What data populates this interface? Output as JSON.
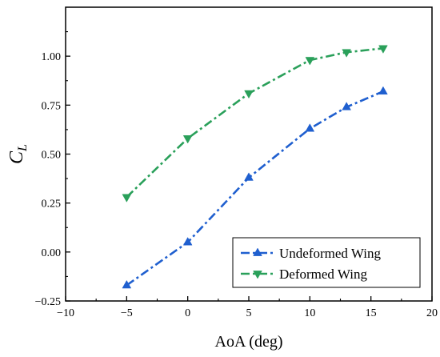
{
  "chart_data": {
    "type": "line",
    "xlabel": "AoA (deg)",
    "ylabel_main": "C",
    "ylabel_sub": "L",
    "xlim": [
      -10,
      20
    ],
    "ylim": [
      -0.25,
      1.25
    ],
    "xticks": [
      -10,
      -5,
      0,
      5,
      10,
      15,
      20
    ],
    "yticks": [
      -0.25,
      0.0,
      0.25,
      0.5,
      0.75,
      1.0
    ],
    "xtick_labels": [
      "−10",
      "−5",
      "0",
      "5",
      "10",
      "15",
      "20"
    ],
    "ytick_labels": [
      "−0.25",
      "0.00",
      "0.25",
      "0.50",
      "0.75",
      "1.00"
    ],
    "grid": false,
    "legend_position": "bottom-right",
    "series": [
      {
        "name": "Undeformed Wing",
        "color": "#1f5fcf",
        "marker": "triangle-up",
        "line_style": "dash-dot",
        "x": [
          -5,
          0,
          5,
          10,
          13,
          16
        ],
        "y": [
          -0.17,
          0.05,
          0.38,
          0.63,
          0.74,
          0.82
        ]
      },
      {
        "name": "Deformed Wing",
        "color": "#2aa05a",
        "marker": "triangle-down",
        "line_style": "dash-dot",
        "x": [
          -5,
          0,
          5,
          10,
          13,
          16
        ],
        "y": [
          0.28,
          0.58,
          0.81,
          0.98,
          1.02,
          1.04
        ]
      }
    ]
  }
}
